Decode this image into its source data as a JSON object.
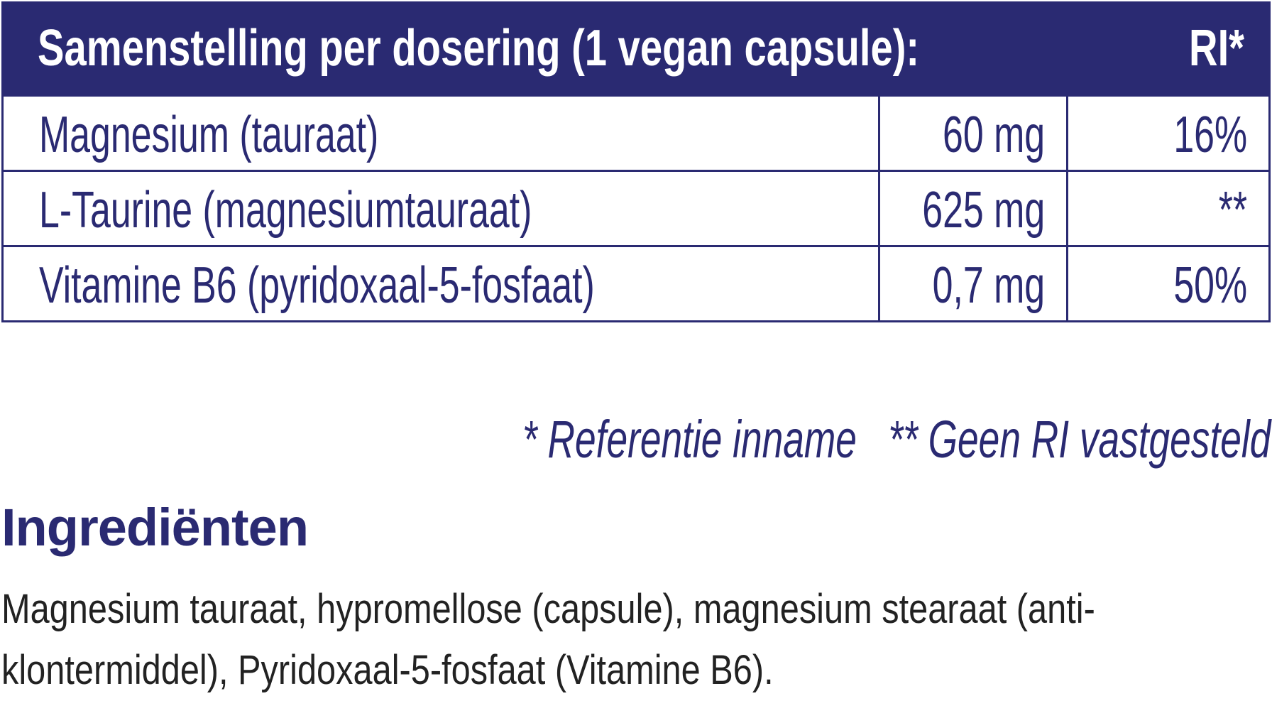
{
  "table": {
    "header": {
      "title": "Samenstelling per dosering (1 vegan capsule):",
      "ri": "RI*"
    },
    "rows": [
      {
        "name": "Magnesium (tauraat)",
        "amount": "60 mg",
        "ri": "16%"
      },
      {
        "name": "L-Taurine (magnesiumtauraat)",
        "amount": "625 mg",
        "ri": "**"
      },
      {
        "name": "Vitamine B6 (pyridoxaal-5-fosfaat)",
        "amount": "0,7 mg",
        "ri": "50%"
      }
    ]
  },
  "footnote": "* Referentie inname   ** Geen RI vastgesteld",
  "ingredients": {
    "title": "Ingrediënten",
    "text": "Magnesium tauraat, hypromellose (capsule), magnesium stearaat (anti-klontermiddel), Pyridoxaal-5-fosfaat (Vitamine B6)."
  },
  "colors": {
    "brand": "#2a2a72"
  }
}
